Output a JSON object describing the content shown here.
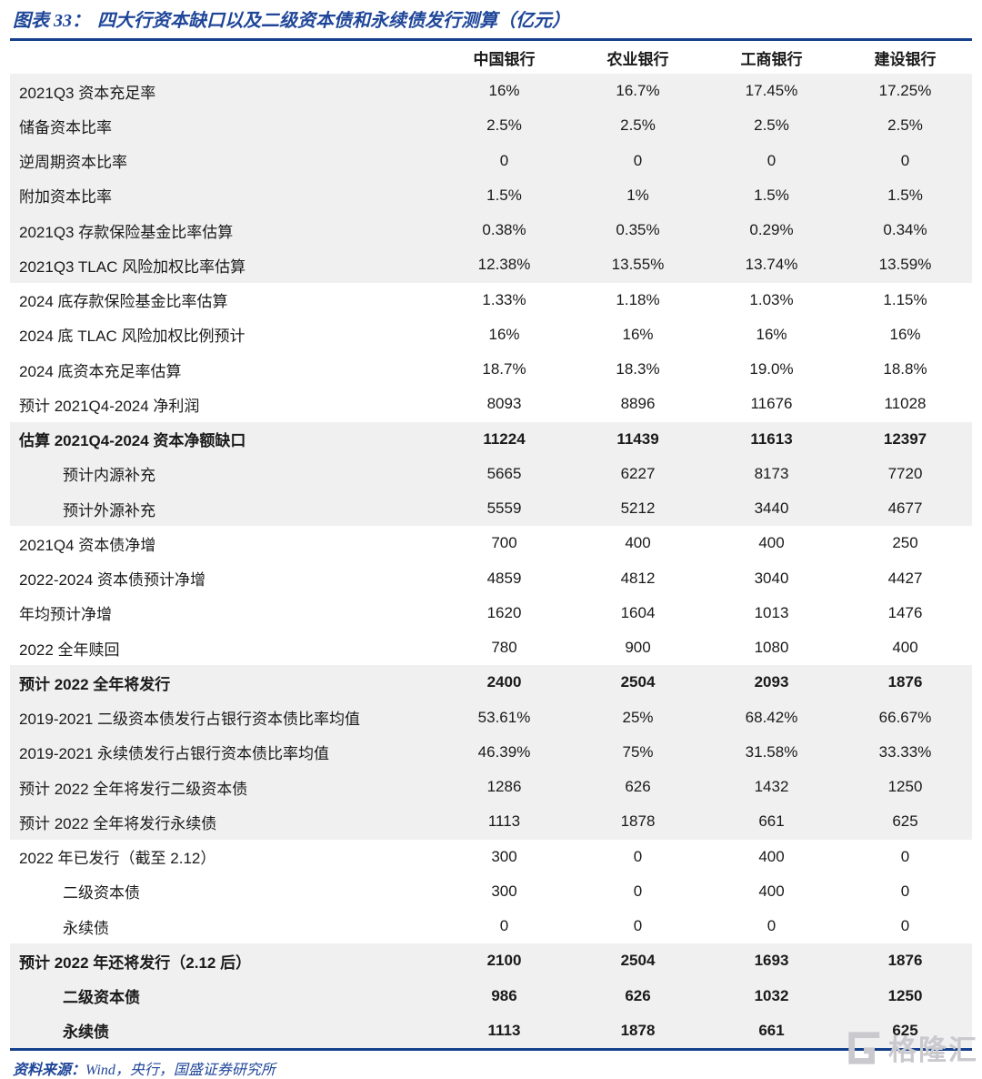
{
  "figure": {
    "title_prefix": "图表 33：",
    "title": "四大行资本缺口以及二级资本债和永续债发行测算（亿元）",
    "source_prefix": "资料来源：",
    "source_text": "Wind，央行，国盛证券研究所",
    "watermark": "格隆汇"
  },
  "theme": {
    "accent_blue": "#16408c",
    "title_blue": "#1f4699",
    "row_shade": "#f0f0f1",
    "watermark_gray": "#c9c9ce",
    "text_color": "#1a1a1a"
  },
  "table": {
    "columns": [
      "中国银行",
      "农业银行",
      "工商银行",
      "建设银行"
    ],
    "rows": [
      {
        "label": "2021Q3 资本充足率",
        "values": [
          "16%",
          "16.7%",
          "17.45%",
          "17.25%"
        ],
        "shaded": true,
        "bold": false,
        "indent": false
      },
      {
        "label": "储备资本比率",
        "values": [
          "2.5%",
          "2.5%",
          "2.5%",
          "2.5%"
        ],
        "shaded": true,
        "bold": false,
        "indent": false
      },
      {
        "label": "逆周期资本比率",
        "values": [
          "0",
          "0",
          "0",
          "0"
        ],
        "shaded": true,
        "bold": false,
        "indent": false
      },
      {
        "label": "附加资本比率",
        "values": [
          "1.5%",
          "1%",
          "1.5%",
          "1.5%"
        ],
        "shaded": true,
        "bold": false,
        "indent": false
      },
      {
        "label": "2021Q3 存款保险基金比率估算",
        "values": [
          "0.38%",
          "0.35%",
          "0.29%",
          "0.34%"
        ],
        "shaded": true,
        "bold": false,
        "indent": false
      },
      {
        "label": "2021Q3 TLAC 风险加权比率估算",
        "values": [
          "12.38%",
          "13.55%",
          "13.74%",
          "13.59%"
        ],
        "shaded": true,
        "bold": false,
        "indent": false
      },
      {
        "label": "2024 底存款保险基金比率估算",
        "values": [
          "1.33%",
          "1.18%",
          "1.03%",
          "1.15%"
        ],
        "shaded": false,
        "bold": false,
        "indent": false
      },
      {
        "label": "2024 底 TLAC 风险加权比例预计",
        "values": [
          "16%",
          "16%",
          "16%",
          "16%"
        ],
        "shaded": false,
        "bold": false,
        "indent": false
      },
      {
        "label": "2024 底资本充足率估算",
        "values": [
          "18.7%",
          "18.3%",
          "19.0%",
          "18.8%"
        ],
        "shaded": false,
        "bold": false,
        "indent": false
      },
      {
        "label": "预计 2021Q4-2024 净利润",
        "values": [
          "8093",
          "8896",
          "11676",
          "11028"
        ],
        "shaded": false,
        "bold": false,
        "indent": false
      },
      {
        "label": "估算 2021Q4-2024 资本净额缺口",
        "values": [
          "11224",
          "11439",
          "11613",
          "12397"
        ],
        "shaded": true,
        "bold": true,
        "indent": false
      },
      {
        "label": "预计内源补充",
        "values": [
          "5665",
          "6227",
          "8173",
          "7720"
        ],
        "shaded": true,
        "bold": false,
        "indent": true
      },
      {
        "label": "预计外源补充",
        "values": [
          "5559",
          "5212",
          "3440",
          "4677"
        ],
        "shaded": true,
        "bold": false,
        "indent": true
      },
      {
        "label": "2021Q4 资本债净增",
        "values": [
          "700",
          "400",
          "400",
          "250"
        ],
        "shaded": false,
        "bold": false,
        "indent": false
      },
      {
        "label": "2022-2024 资本债预计净增",
        "values": [
          "4859",
          "4812",
          "3040",
          "4427"
        ],
        "shaded": false,
        "bold": false,
        "indent": false
      },
      {
        "label": "年均预计净增",
        "values": [
          "1620",
          "1604",
          "1013",
          "1476"
        ],
        "shaded": false,
        "bold": false,
        "indent": false
      },
      {
        "label": "2022 全年赎回",
        "values": [
          "780",
          "900",
          "1080",
          "400"
        ],
        "shaded": false,
        "bold": false,
        "indent": false
      },
      {
        "label": "预计 2022 全年将发行",
        "values": [
          "2400",
          "2504",
          "2093",
          "1876"
        ],
        "shaded": true,
        "bold": true,
        "indent": false
      },
      {
        "label": "2019-2021 二级资本债发行占银行资本债比率均值",
        "values": [
          "53.61%",
          "25%",
          "68.42%",
          "66.67%"
        ],
        "shaded": true,
        "bold": false,
        "indent": false
      },
      {
        "label": "2019-2021 永续债发行占银行资本债比率均值",
        "values": [
          "46.39%",
          "75%",
          "31.58%",
          "33.33%"
        ],
        "shaded": true,
        "bold": false,
        "indent": false
      },
      {
        "label": "预计 2022 全年将发行二级资本债",
        "values": [
          "1286",
          "626",
          "1432",
          "1250"
        ],
        "shaded": true,
        "bold": false,
        "indent": false
      },
      {
        "label": "预计 2022 全年将发行永续债",
        "values": [
          "1113",
          "1878",
          "661",
          "625"
        ],
        "shaded": true,
        "bold": false,
        "indent": false
      },
      {
        "label": "2022 年已发行（截至 2.12）",
        "values": [
          "300",
          "0",
          "400",
          "0"
        ],
        "shaded": false,
        "bold": false,
        "indent": false
      },
      {
        "label": "二级资本债",
        "values": [
          "300",
          "0",
          "400",
          "0"
        ],
        "shaded": false,
        "bold": false,
        "indent": true
      },
      {
        "label": "永续债",
        "values": [
          "0",
          "0",
          "0",
          "0"
        ],
        "shaded": false,
        "bold": false,
        "indent": true
      },
      {
        "label": "预计 2022 年还将发行（2.12 后）",
        "values": [
          "2100",
          "2504",
          "1693",
          "1876"
        ],
        "shaded": true,
        "bold": true,
        "indent": false
      },
      {
        "label": "二级资本债",
        "values": [
          "986",
          "626",
          "1032",
          "1250"
        ],
        "shaded": true,
        "bold": true,
        "indent": true
      },
      {
        "label": "永续债",
        "values": [
          "1113",
          "1878",
          "661",
          "625"
        ],
        "shaded": true,
        "bold": true,
        "indent": true
      }
    ]
  }
}
